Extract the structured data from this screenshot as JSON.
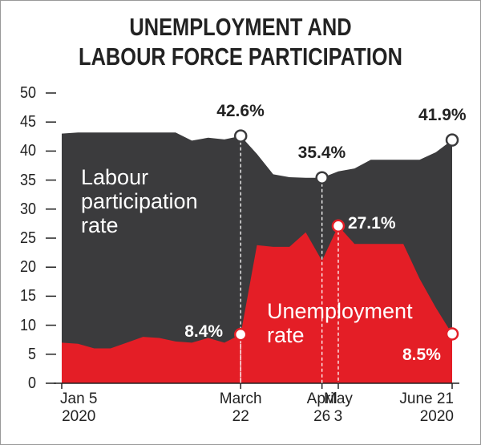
{
  "chart_data": {
    "type": "area",
    "title": "UNEMPLOYMENT AND\nLABOUR FORCE PARTICIPATION",
    "categories": [
      "Jan 5\n2020",
      null,
      null,
      null,
      null,
      null,
      null,
      null,
      null,
      null,
      null,
      "March\n22",
      null,
      null,
      null,
      null,
      "April\n26",
      "May\n3",
      null,
      null,
      null,
      null,
      null,
      null,
      "June 21\n2020"
    ],
    "series": [
      {
        "name": "Labour\nparticipation\nrate",
        "color": "#3b3b3d",
        "values": [
          43,
          43.2,
          43.2,
          43.2,
          43.2,
          43.2,
          43.2,
          43.2,
          41.8,
          42.3,
          42,
          42.6,
          39.5,
          36,
          35.5,
          35.4,
          35.4,
          36.5,
          37,
          38.5,
          38.5,
          38.5,
          38.5,
          39.8,
          41.9
        ],
        "value_labels": [
          null,
          null,
          null,
          null,
          null,
          null,
          null,
          null,
          null,
          null,
          null,
          "42.6%",
          null,
          null,
          null,
          null,
          "35.4%",
          null,
          null,
          null,
          null,
          null,
          null,
          null,
          "41.9%"
        ]
      },
      {
        "name": "Unemployment\nrate",
        "color": "#e41e26",
        "values": [
          7,
          6.8,
          6,
          6,
          7,
          8,
          7.8,
          7.2,
          7,
          7.8,
          7,
          8.4,
          23.8,
          23.5,
          23.5,
          26,
          21.1,
          27.1,
          24,
          24,
          24,
          24,
          18,
          13,
          8.5
        ],
        "value_labels": [
          null,
          null,
          null,
          null,
          null,
          null,
          null,
          null,
          null,
          null,
          null,
          "8.4%",
          null,
          null,
          null,
          null,
          null,
          "27.1%",
          null,
          null,
          null,
          null,
          null,
          null,
          "8.5%"
        ]
      }
    ],
    "ylim": [
      0,
      50
    ],
    "yticks": [
      0,
      5,
      10,
      15,
      20,
      25,
      30,
      35,
      40,
      45,
      50
    ]
  }
}
